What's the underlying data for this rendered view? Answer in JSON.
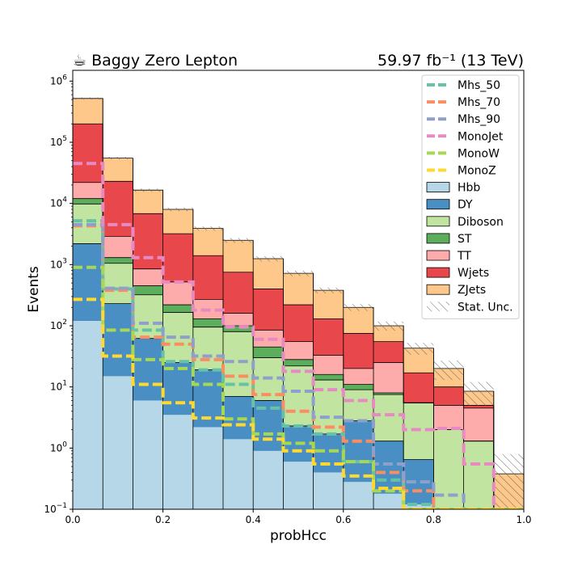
{
  "chart_data": {
    "type": "bar",
    "stacked": true,
    "title_left": "☕ Baggy Zero Lepton",
    "title_right": "59.97 fb⁻¹ (13 TeV)",
    "xlabel": "probHcc",
    "ylabel": "Events",
    "xlim": [
      0,
      1
    ],
    "ylim": [
      0.1,
      1500000
    ],
    "yscale": "log",
    "legend_position": "top-right",
    "bin_edges": [
      0,
      0.0667,
      0.1333,
      0.2,
      0.2667,
      0.3333,
      0.4,
      0.4667,
      0.5333,
      0.6,
      0.6667,
      0.7333,
      0.8,
      0.8667,
      0.9333,
      1.0
    ],
    "x_ticks": [
      {
        "value": 0.0,
        "label": "0.0"
      },
      {
        "value": 0.2,
        "label": "0.2"
      },
      {
        "value": 0.4,
        "label": "0.4"
      },
      {
        "value": 0.6,
        "label": "0.6"
      },
      {
        "value": 0.8,
        "label": "0.8"
      },
      {
        "value": 1.0,
        "label": "1.0"
      }
    ],
    "y_ticks": [
      {
        "value": 0.1,
        "base": "10",
        "exp": "−1"
      },
      {
        "value": 1,
        "base": "10",
        "exp": "0"
      },
      {
        "value": 10,
        "base": "10",
        "exp": "1"
      },
      {
        "value": 100,
        "base": "10",
        "exp": "2"
      },
      {
        "value": 1000,
        "base": "10",
        "exp": "3"
      },
      {
        "value": 10000,
        "base": "10",
        "exp": "4"
      },
      {
        "value": 100000,
        "base": "10",
        "exp": "5"
      },
      {
        "value": 1000000,
        "base": "10",
        "exp": "6"
      }
    ],
    "backgrounds": [
      {
        "name": "Hbb",
        "color": "#b6d7e8",
        "values": [
          120,
          15,
          6,
          3.5,
          2.2,
          1.4,
          0.9,
          0.6,
          0.4,
          0.28,
          0.18,
          0.12,
          0.1,
          0.1,
          0.1
        ]
      },
      {
        "name": "DY",
        "color": "#4a8fc4",
        "values": [
          2200,
          230,
          62,
          25,
          19,
          7,
          6,
          2.3,
          1.7,
          2.8,
          1.3,
          0.65,
          0.1,
          0.1,
          0.1
        ]
      },
      {
        "name": "Diboson",
        "color": "#c1e5a0",
        "values": [
          9800,
          1050,
          320,
          165,
          95,
          80,
          30,
          22,
          13,
          9,
          7.5,
          5.5,
          2,
          1.3,
          0.1
        ]
      },
      {
        "name": "ST",
        "color": "#5cad5c",
        "values": [
          12000,
          1300,
          450,
          220,
          130,
          100,
          45,
          28,
          16,
          11,
          8,
          5.5,
          2,
          1.3,
          0.1
        ]
      },
      {
        "name": "TT",
        "color": "#fdabab",
        "values": [
          22000,
          2900,
          850,
          520,
          270,
          160,
          85,
          55,
          33,
          20,
          25,
          5.5,
          5,
          4.5,
          0.1
        ]
      },
      {
        "name": "Wjets",
        "color": "#e8474c",
        "values": [
          200000,
          23000,
          6800,
          3200,
          1400,
          750,
          400,
          220,
          130,
          75,
          55,
          17,
          10,
          5,
          0.1
        ]
      },
      {
        "name": "ZJets",
        "color": "#fec88a",
        "values": [
          520000,
          55000,
          16500,
          8000,
          3900,
          2500,
          1250,
          720,
          380,
          200,
          100,
          43,
          20,
          8.5,
          0.38
        ]
      }
    ],
    "stat_unc": {
      "name": "Stat. Unc.",
      "relative": [
        0.04,
        0.05,
        0.06,
        0.07,
        0.08,
        0.09,
        0.1,
        0.1,
        0.11,
        0.13,
        0.17,
        0.22,
        0.35,
        0.42,
        1.1
      ]
    },
    "signals": [
      {
        "name": "Mhs_50",
        "color": "#66c2a5",
        "values": [
          5200,
          400,
          85,
          26,
          19,
          11,
          4.5,
          2.3,
          1.7,
          0.6,
          0.3,
          0.12,
          0.1,
          0.1,
          0.1
        ]
      },
      {
        "name": "Mhs_70",
        "color": "#fc8d62",
        "values": [
          4300,
          380,
          65,
          50,
          28,
          15,
          7.5,
          4,
          2.2,
          1.3,
          0.4,
          0.2,
          0.1,
          0.1,
          0.1
        ]
      },
      {
        "name": "Mhs_90",
        "color": "#8da0cb",
        "values": [
          4500,
          410,
          110,
          65,
          32,
          26,
          14,
          8.5,
          3.2,
          2.8,
          0.55,
          0.28,
          0.17,
          0.1,
          0.1
        ]
      },
      {
        "name": "MonoJet",
        "color": "#e78ac3",
        "values": [
          45000,
          4500,
          1300,
          520,
          180,
          95,
          60,
          18,
          9,
          6,
          3.5,
          2,
          2.1,
          0.55,
          0.1
        ]
      },
      {
        "name": "MonoW",
        "color": "#a6d854",
        "values": [
          900,
          85,
          28,
          20,
          11,
          3,
          1.7,
          1.2,
          0.9,
          0.6,
          0.2,
          0.1,
          0.1,
          0.1,
          0.1
        ]
      },
      {
        "name": "MonoZ",
        "color": "#ffd92f",
        "values": [
          270,
          32,
          11,
          5.5,
          3.1,
          2.4,
          1.4,
          0.9,
          0.55,
          0.35,
          0.22,
          0.1,
          0.1,
          0.1,
          0.1
        ]
      }
    ]
  }
}
